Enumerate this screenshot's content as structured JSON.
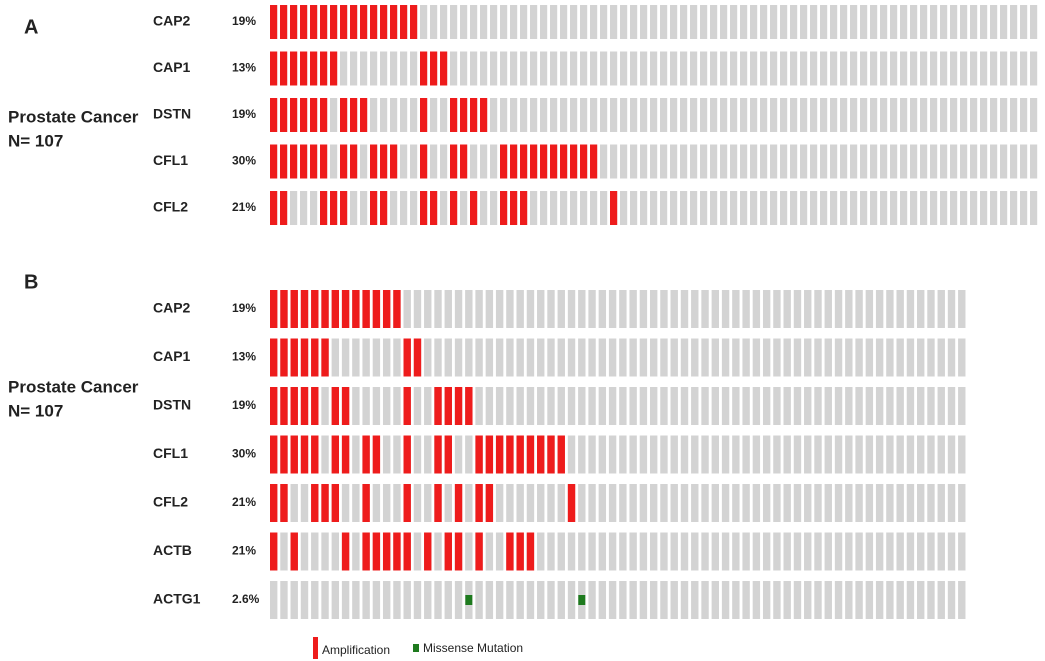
{
  "panels": [
    {
      "label": "A",
      "cohort": "Prostate Cancer",
      "n": "N= 107",
      "columns": 77,
      "rows": [
        {
          "gene": "CAP2",
          "percent": "19%",
          "amplification": [
            0,
            1,
            2,
            3,
            4,
            5,
            6,
            7,
            8,
            9,
            10,
            11,
            12,
            13,
            14
          ]
        },
        {
          "gene": "CAP1",
          "percent": "13%",
          "amplification": [
            0,
            1,
            2,
            3,
            4,
            5,
            6,
            15,
            16,
            17
          ]
        },
        {
          "gene": "DSTN",
          "percent": "19%",
          "amplification": [
            0,
            1,
            2,
            3,
            4,
            5,
            7,
            8,
            9,
            15,
            18,
            19,
            20,
            21
          ]
        },
        {
          "gene": "CFL1",
          "percent": "30%",
          "amplification": [
            0,
            1,
            2,
            3,
            4,
            5,
            7,
            8,
            10,
            11,
            12,
            15,
            18,
            19,
            23,
            24,
            25,
            26,
            27,
            28,
            29,
            30,
            31,
            32
          ]
        },
        {
          "gene": "CFL2",
          "percent": "21%",
          "amplification": [
            0,
            1,
            5,
            6,
            7,
            10,
            11,
            15,
            16,
            18,
            20,
            23,
            24,
            25,
            34
          ]
        }
      ]
    },
    {
      "label": "B",
      "cohort": "Prostate Cancer",
      "n": "N= 107",
      "columns": 68,
      "rows": [
        {
          "gene": "CAP2",
          "percent": "19%",
          "amplification": [
            0,
            1,
            2,
            3,
            4,
            5,
            6,
            7,
            8,
            9,
            10,
            11,
            12
          ]
        },
        {
          "gene": "CAP1",
          "percent": "13%",
          "amplification": [
            0,
            1,
            2,
            3,
            4,
            5,
            13,
            14
          ]
        },
        {
          "gene": "DSTN",
          "percent": "19%",
          "amplification": [
            0,
            1,
            2,
            3,
            4,
            6,
            7,
            13,
            16,
            17,
            18,
            19
          ]
        },
        {
          "gene": "CFL1",
          "percent": "30%",
          "amplification": [
            0,
            1,
            2,
            3,
            4,
            6,
            7,
            9,
            10,
            13,
            16,
            17,
            20,
            21,
            22,
            23,
            24,
            25,
            26,
            27,
            28
          ]
        },
        {
          "gene": "CFL2",
          "percent": "21%",
          "amplification": [
            0,
            1,
            4,
            5,
            6,
            9,
            13,
            16,
            18,
            20,
            21,
            29
          ]
        },
        {
          "gene": "ACTB",
          "percent": "21%",
          "amplification": [
            0,
            2,
            7,
            9,
            10,
            11,
            12,
            13,
            15,
            17,
            18,
            20,
            23,
            24,
            25
          ]
        },
        {
          "gene": "ACTG1",
          "percent": "2.6%",
          "missense": [
            19,
            30
          ]
        }
      ]
    }
  ],
  "legend": [
    {
      "label": "Amplification",
      "color": "#ee1c1c"
    },
    {
      "label": "Missense Mutation",
      "color": "#1e7a1e"
    }
  ]
}
